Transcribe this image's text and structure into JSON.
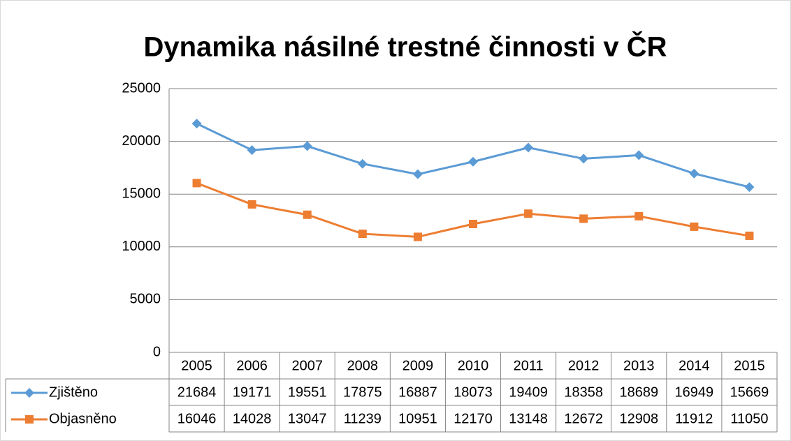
{
  "chart_data": {
    "type": "line",
    "title": "Dynamika násilné trestné činnosti v ČR",
    "categories": [
      "2005",
      "2006",
      "2007",
      "2008",
      "2009",
      "2010",
      "2011",
      "2012",
      "2013",
      "2014",
      "2015"
    ],
    "series": [
      {
        "name": "Zjištěno",
        "color": "#5b9bd5",
        "marker": "diamond",
        "values": [
          21684,
          19171,
          19551,
          17875,
          16887,
          18073,
          19409,
          18358,
          18689,
          16949,
          15669
        ]
      },
      {
        "name": "Objasněno",
        "color": "#ed7d31",
        "marker": "square",
        "values": [
          16046,
          14028,
          13047,
          11239,
          10951,
          12170,
          13148,
          12672,
          12908,
          11912,
          11050
        ]
      }
    ],
    "ylim": [
      0,
      25000
    ],
    "yticks": [
      0,
      5000,
      10000,
      15000,
      20000,
      25000
    ],
    "grid": true,
    "data_table": true
  }
}
